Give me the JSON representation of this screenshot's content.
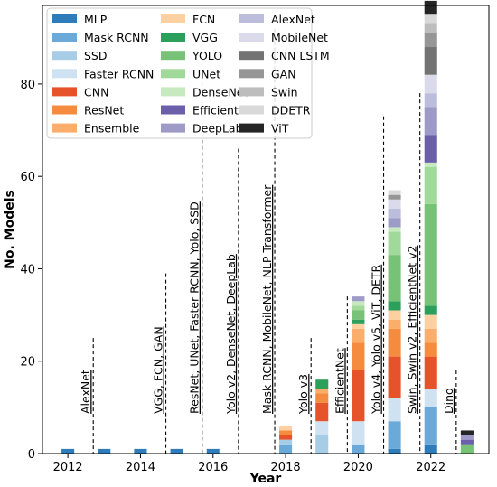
{
  "chart_data": {
    "type": "bar",
    "stacked": true,
    "xlabel": "Year",
    "ylabel": "No. Models",
    "xlim": [
      2011.3,
      2023.6
    ],
    "ylim": [
      0,
      97
    ],
    "x_ticks": [
      2012,
      2014,
      2016,
      2018,
      2020,
      2022
    ],
    "y_ticks": [
      0,
      20,
      40,
      60,
      80
    ],
    "grid": false,
    "legend_position": "top-left, 3 columns",
    "categories": [
      2012,
      2013,
      2014,
      2015,
      2016,
      2018,
      2019,
      2020,
      2021,
      2022,
      2023
    ],
    "series": [
      {
        "name": "MLP",
        "color": "#2f7cbb",
        "values": [
          1,
          1,
          1,
          1,
          1,
          0,
          0,
          0,
          1,
          2,
          0
        ]
      },
      {
        "name": "Mask RCNN",
        "color": "#6aa9d8",
        "values": [
          0,
          0,
          0,
          0,
          0,
          2,
          0,
          2,
          6,
          8,
          0
        ]
      },
      {
        "name": "SSD",
        "color": "#a6cde5",
        "values": [
          0,
          0,
          0,
          0,
          0,
          1,
          4,
          0,
          0,
          0,
          0
        ]
      },
      {
        "name": "Faster RCNN",
        "color": "#cfe2f2",
        "values": [
          0,
          0,
          0,
          0,
          0,
          0,
          3,
          5,
          5,
          4,
          0
        ]
      },
      {
        "name": "CNN",
        "color": "#e6532a",
        "values": [
          0,
          0,
          0,
          0,
          0,
          1,
          4,
          11,
          9,
          7,
          0
        ]
      },
      {
        "name": "ResNet",
        "color": "#f58b3e",
        "values": [
          0,
          0,
          0,
          0,
          0,
          1,
          2,
          6,
          6,
          3,
          0
        ]
      },
      {
        "name": "Ensemble",
        "color": "#fbae6c",
        "values": [
          0,
          0,
          0,
          0,
          0,
          0,
          1,
          3,
          2,
          3,
          0
        ]
      },
      {
        "name": "FCN",
        "color": "#fdd0a2",
        "values": [
          0,
          0,
          0,
          0,
          0,
          1,
          0,
          1,
          2,
          3,
          0
        ]
      },
      {
        "name": "VGG",
        "color": "#2ca05a",
        "values": [
          0,
          0,
          0,
          0,
          0,
          0,
          2,
          1,
          2,
          2,
          0
        ]
      },
      {
        "name": "YOLO",
        "color": "#77c276",
        "values": [
          0,
          0,
          0,
          0,
          0,
          0,
          0,
          2,
          10,
          22,
          2
        ]
      },
      {
        "name": "UNet",
        "color": "#a1d99b",
        "values": [
          0,
          0,
          0,
          0,
          0,
          0,
          0,
          1,
          5,
          8,
          0
        ]
      },
      {
        "name": "DenseNet",
        "color": "#c7e9c0",
        "values": [
          0,
          0,
          0,
          0,
          0,
          0,
          0,
          1,
          1,
          1,
          0
        ]
      },
      {
        "name": "EfficientNet",
        "color": "#6a5fa8",
        "values": [
          0,
          0,
          0,
          0,
          0,
          0,
          0,
          0,
          0,
          6,
          1
        ]
      },
      {
        "name": "DeepLab",
        "color": "#9e9ac8",
        "values": [
          0,
          0,
          0,
          0,
          0,
          0,
          0,
          1,
          2,
          6,
          1
        ]
      },
      {
        "name": "AlexNet",
        "color": "#bcbddc",
        "values": [
          0,
          0,
          0,
          0,
          0,
          0,
          0,
          0,
          2,
          3,
          0
        ]
      },
      {
        "name": "MobileNet",
        "color": "#dadaeb",
        "values": [
          0,
          0,
          0,
          0,
          0,
          0,
          0,
          0,
          2,
          4,
          0
        ]
      },
      {
        "name": "CNN LSTM",
        "color": "#737373",
        "values": [
          0,
          0,
          0,
          0,
          0,
          0,
          0,
          0,
          0,
          6,
          0
        ]
      },
      {
        "name": "GAN",
        "color": "#969696",
        "values": [
          0,
          0,
          0,
          0,
          0,
          0,
          0,
          0,
          1,
          3,
          0
        ]
      },
      {
        "name": "Swin",
        "color": "#bdbdbd",
        "values": [
          0,
          0,
          0,
          0,
          0,
          0,
          0,
          0,
          0,
          2,
          0
        ]
      },
      {
        "name": "DDETR",
        "color": "#d9d9d9",
        "values": [
          0,
          0,
          0,
          0,
          0,
          0,
          0,
          0,
          1,
          2,
          0
        ]
      },
      {
        "name": "ViT",
        "color": "#252525",
        "values": [
          0,
          0,
          0,
          0,
          0,
          0,
          0,
          0,
          0,
          3,
          1
        ]
      }
    ],
    "annotations": [
      {
        "x": 2012.7,
        "y_top": 25,
        "text": "AlexNet"
      },
      {
        "x": 2014.7,
        "y_top": 39,
        "text": "VGG, FCN, GAN"
      },
      {
        "x": 2015.7,
        "y_top": 83,
        "text": "ResNet, UNet, Faster RCNN, Yolo, SSD"
      },
      {
        "x": 2016.7,
        "y_top": 66,
        "text": "Yolo v2, DenseNet, DeepLab"
      },
      {
        "x": 2017.7,
        "y_top": 92,
        "text": "Mask RCNN, MobileNet, NLP Transformer"
      },
      {
        "x": 2018.7,
        "y_top": 25,
        "text": "Yolo v3"
      },
      {
        "x": 2019.7,
        "y_top": 34,
        "text": "EfficientNet"
      },
      {
        "x": 2020.7,
        "y_top": 73,
        "text": "Yolo v4, Yolo v5, ViT, DETR"
      },
      {
        "x": 2021.7,
        "y_top": 78,
        "text": "Swin, Swin v2, EfficientNet v2"
      },
      {
        "x": 2022.7,
        "y_top": 18,
        "text": "Dino"
      }
    ]
  }
}
